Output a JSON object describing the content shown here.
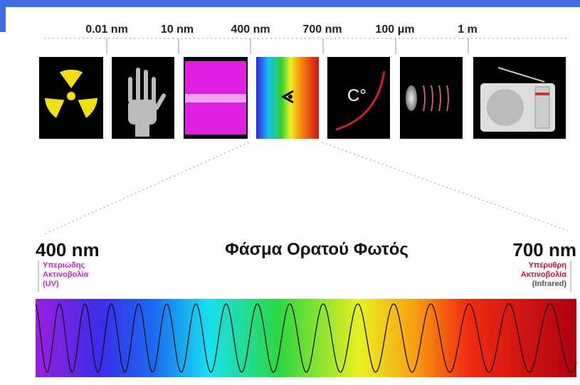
{
  "scale": {
    "labels": [
      "0.01 nm",
      "10 nm",
      "400 nm",
      "700 nm",
      "100 μm",
      "1 m"
    ]
  },
  "icons": {
    "infrared_label": "C°"
  },
  "visible": {
    "title": "Φάσμα Ορατού Φωτός",
    "start": "400 nm",
    "end": "700 nm",
    "uv": [
      "Υπεριώδης",
      "Ακτινοβολία",
      "(UV)"
    ],
    "ir": [
      "Υπέρυθρη",
      "Ακτινοβολία",
      "(Infrared)"
    ]
  }
}
